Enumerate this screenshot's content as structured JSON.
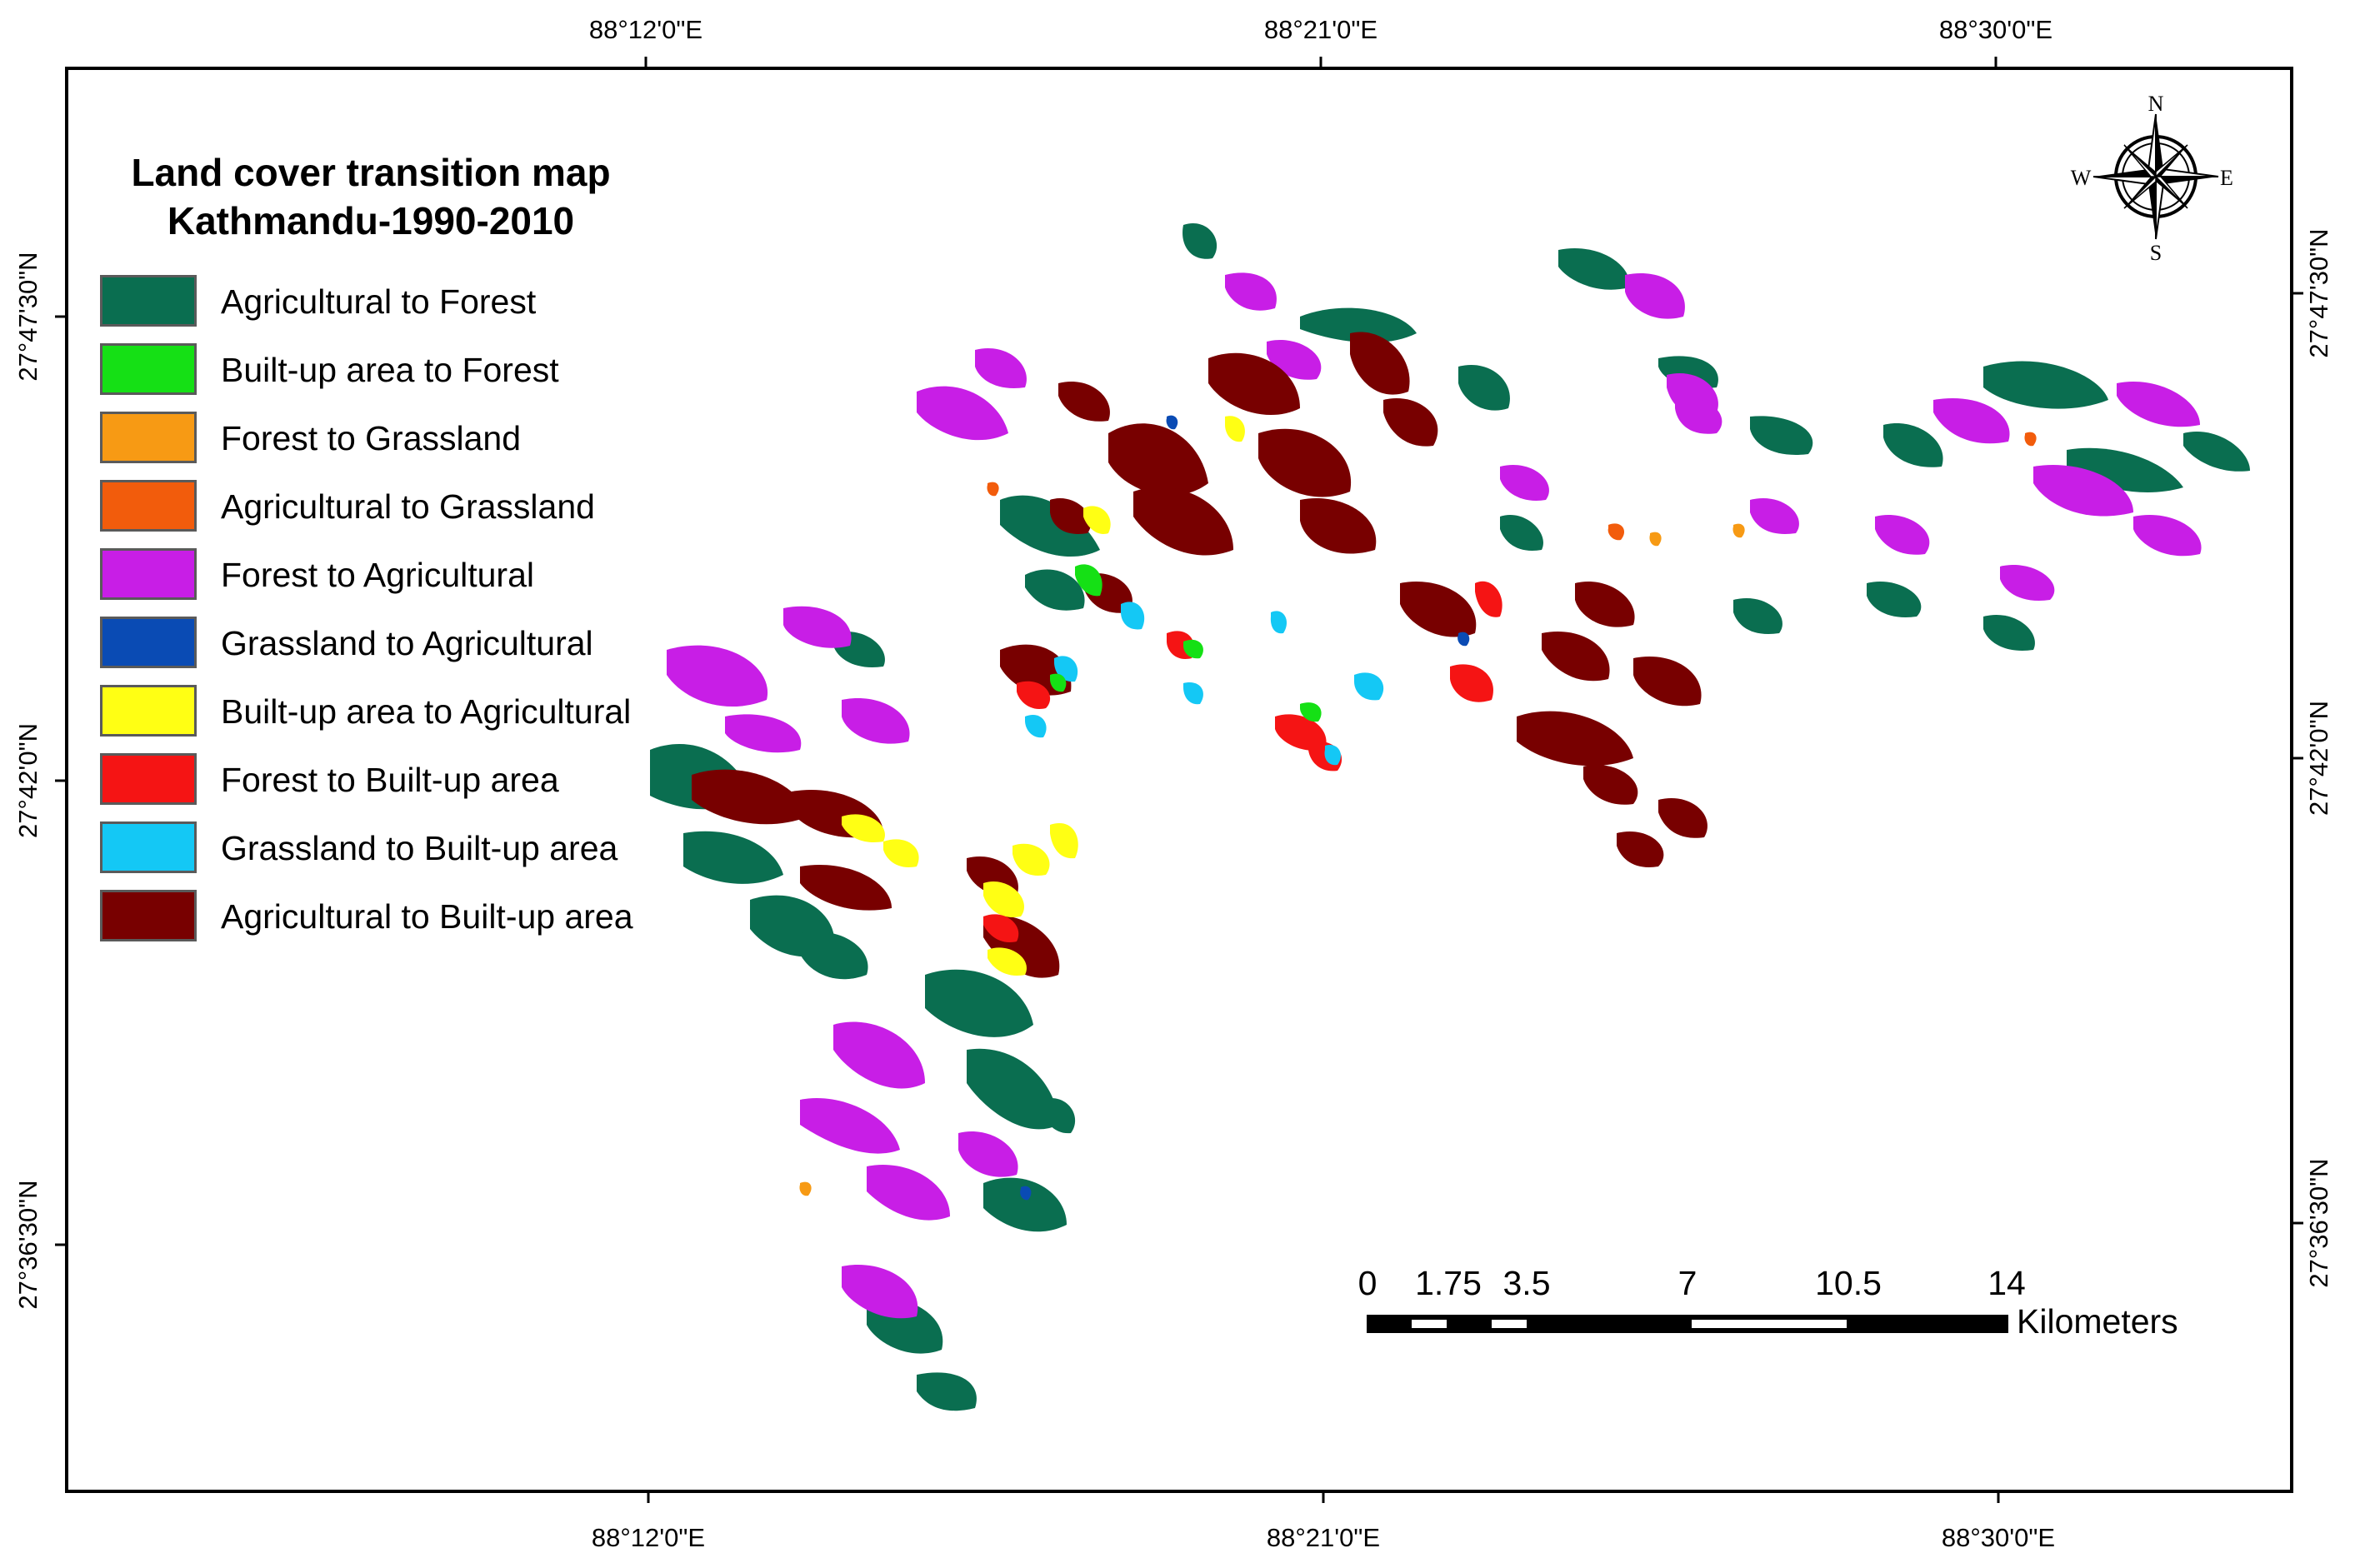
{
  "legend": {
    "title_line1": "Land cover transition map",
    "title_line2": "Kathmandu-1990-2010",
    "items": [
      {
        "label": "Agricultural to Forest",
        "color": "#0a6e50"
      },
      {
        "label": "Built-up area to Forest",
        "color": "#15e015"
      },
      {
        "label": "Forest to Grassland",
        "color": "#f79a14"
      },
      {
        "label": "Agricultural to Grassland",
        "color": "#f25c0c"
      },
      {
        "label": "Forest to Agricultural",
        "color": "#c81ee6"
      },
      {
        "label": "Grassland to Agricultural",
        "color": "#0a4bb4"
      },
      {
        "label": "Built-up area to Agricultural",
        "color": "#ffff14"
      },
      {
        "label": "Forest to Built-up area",
        "color": "#f51414"
      },
      {
        "label": "Grassland to Built-up area",
        "color": "#14c8f5"
      },
      {
        "label": "Agricultural to Built-up area",
        "color": "#780000"
      }
    ]
  },
  "graticule": {
    "top_labels": [
      "88°12'0\"E",
      "88°21'0\"E",
      "88°30'0\"E"
    ],
    "bottom_labels": [
      "88°12'0\"E",
      "88°21'0\"E",
      "88°30'0\"E"
    ],
    "left_labels": [
      "27°47'30\"N",
      "27°42'0\"N",
      "27°36'30\"N"
    ],
    "right_labels": [
      "27°47'30\"N",
      "27°42'0\"N",
      "27°36'30\"N"
    ]
  },
  "compass": {
    "north": "N",
    "south": "S",
    "east": "E",
    "west": "W"
  },
  "scale_bar": {
    "ticks": [
      "0",
      "1.75",
      "3.5",
      "7",
      "10.5",
      "14"
    ],
    "unit": "Kilometers"
  }
}
